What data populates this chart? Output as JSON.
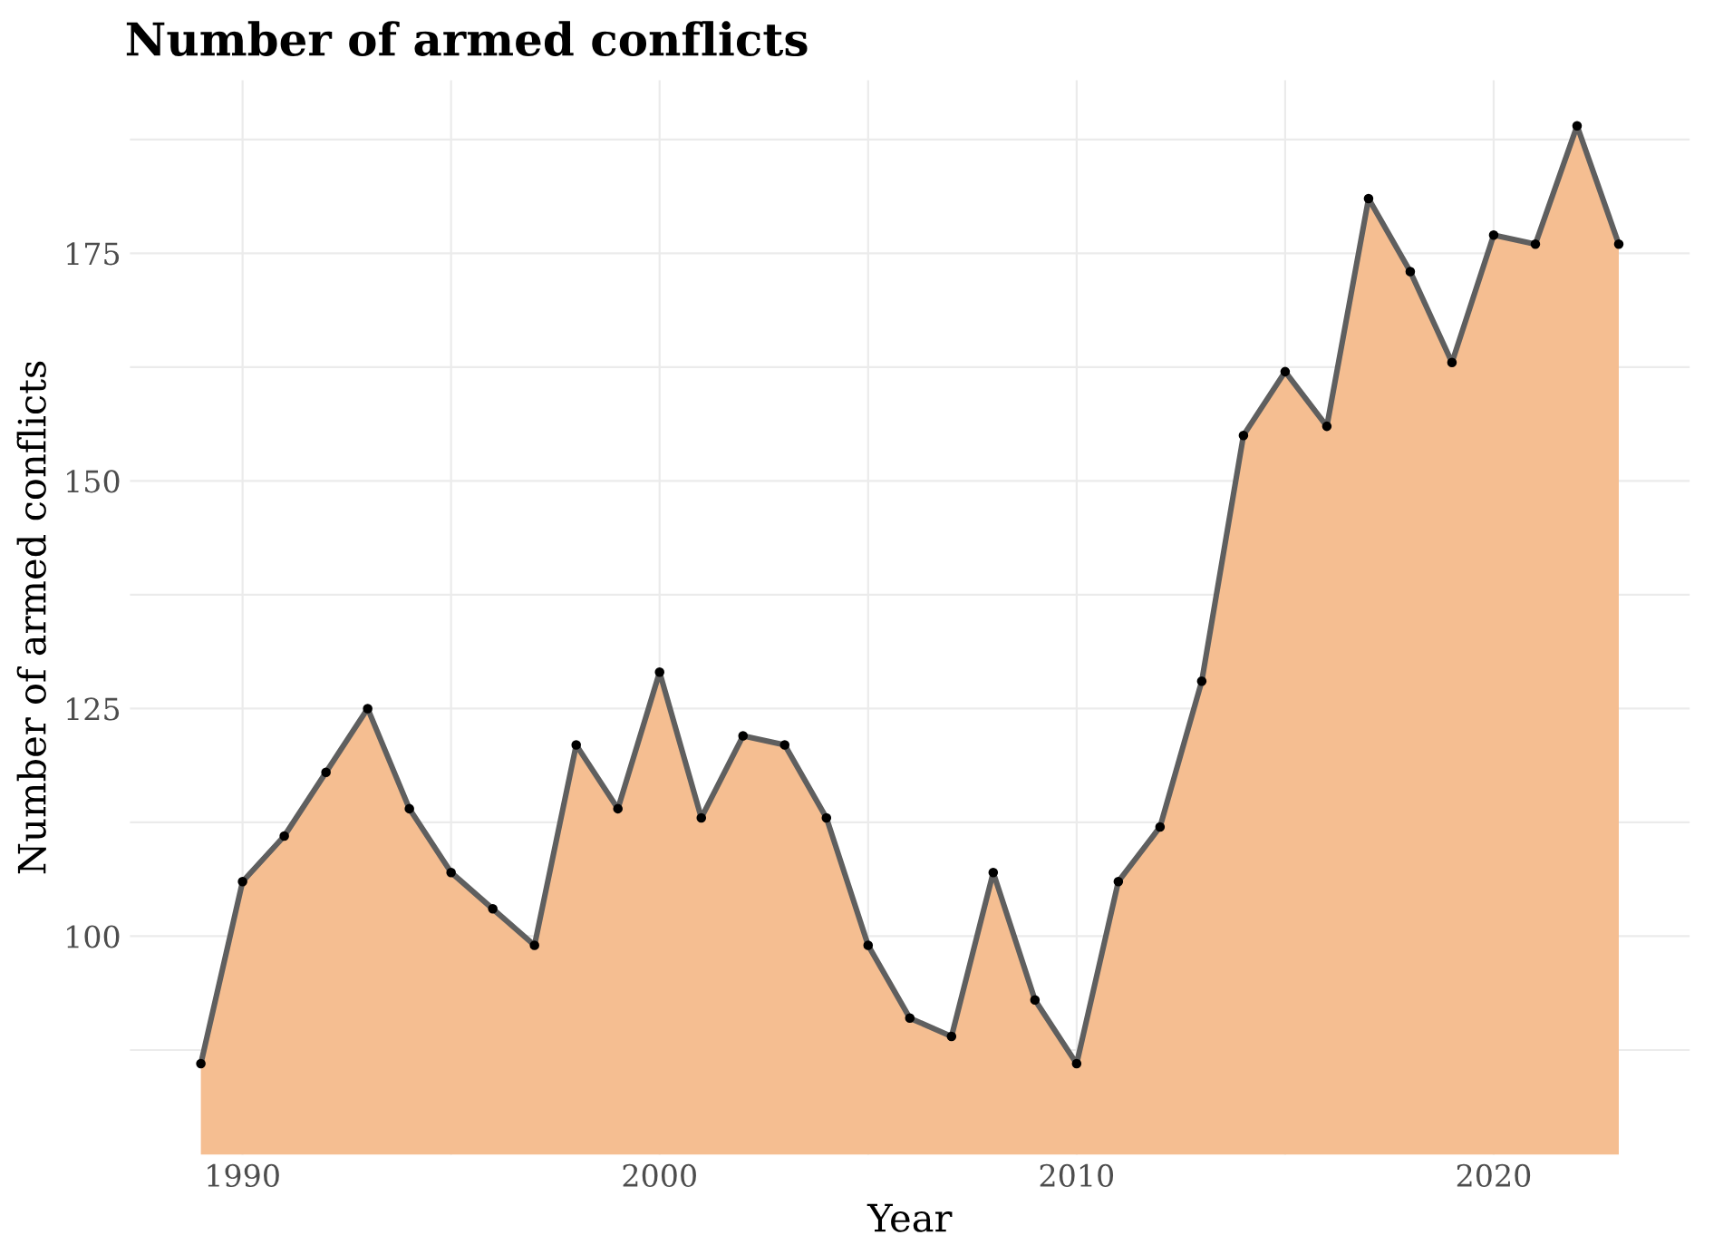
{
  "chart_data": {
    "type": "area",
    "title": "Number of armed conflicts",
    "xlabel": "Year",
    "ylabel": "Number of armed conflicts",
    "x": [
      1989,
      1990,
      1991,
      1992,
      1993,
      1994,
      1995,
      1996,
      1997,
      1998,
      1999,
      2000,
      2001,
      2002,
      2003,
      2004,
      2005,
      2006,
      2007,
      2008,
      2009,
      2010,
      2011,
      2012,
      2013,
      2014,
      2015,
      2016,
      2017,
      2018,
      2019,
      2020,
      2021,
      2022,
      2023
    ],
    "series": [
      {
        "color": "#f5be91",
        "values": [
          86,
          106,
          111,
          118,
          125,
          114,
          107,
          103,
          99,
          121,
          114,
          129,
          113,
          122,
          121,
          113,
          99,
          91,
          89,
          107,
          93,
          86,
          106,
          112,
          128,
          155,
          162,
          156,
          181,
          173,
          163,
          177,
          176,
          189,
          176
        ]
      }
    ],
    "xlim": [
      1987.3,
      2024.7
    ],
    "ylim": [
      76,
      194
    ],
    "xticks": [
      1990,
      2000,
      2010,
      2020
    ],
    "yticks": [
      100,
      125,
      150,
      175
    ],
    "grid": true,
    "marker": "circle",
    "line_style": "solid",
    "legend": false
  }
}
